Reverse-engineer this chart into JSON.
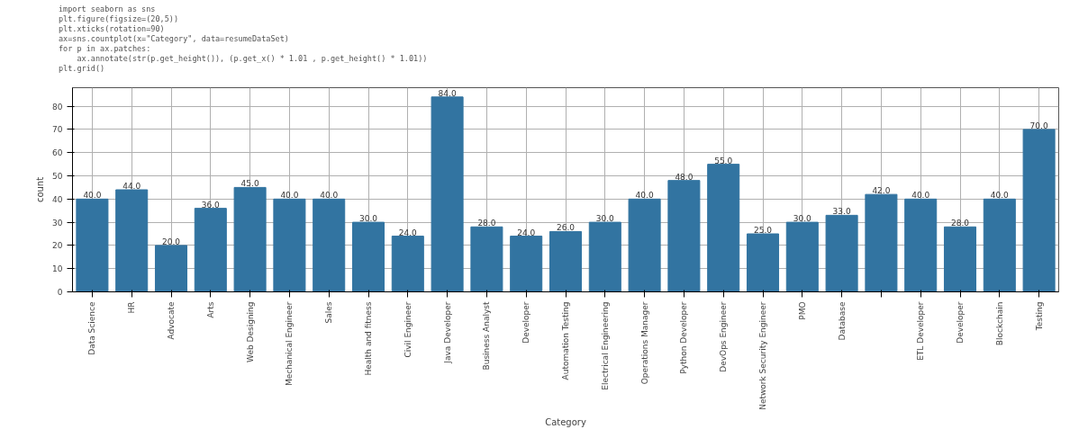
{
  "chart_data": {
    "type": "bar",
    "xlabel": "Category",
    "ylabel": "count",
    "annotations": [
      "import seaborn as sns",
      "plt.figure(figsize=(20,5))",
      "plt.xticks(rotation=90)",
      "ax=sns.countplot(x=\"Category\", data=resumeDataSet)",
      "for p in ax.patches:",
      "    ax.annotate(str(p.get_height()), (p.get_x() * 1.01 , p.get_height() * 1.01))",
      "plt.grid()"
    ],
    "categories": [
      "Data Science",
      "HR",
      "Advocate",
      "Arts",
      "Web Designing",
      "Mechanical Engineer",
      "Sales",
      "Health and fitness",
      "Civil Engineer",
      "Java Developer",
      "Business Analyst",
      "Developer",
      "Automation Testing",
      "Electrical Engineering",
      "Operations Manager",
      "Python Developer",
      "DevOps Engineer",
      "Network Security Engineer",
      "PMO",
      "Database",
      null,
      "ETL Developer",
      "Developer",
      "Blockchain",
      "Testing"
    ],
    "values": [
      40,
      44,
      20,
      36,
      45,
      40,
      40,
      30,
      24,
      84,
      28,
      24,
      26,
      30,
      40,
      48,
      55,
      25,
      30,
      33,
      42,
      40,
      28,
      40,
      70
    ],
    "value_labels": [
      "40.0",
      "44.0",
      "20.0",
      "36.0",
      "45.0",
      "40.0",
      "40.0",
      "30.0",
      "24.0",
      "84.0",
      "28.0",
      "24.0",
      "26.0",
      "30.0",
      "40.0",
      "48.0",
      "55.0",
      "25.0",
      "30.0",
      "33.0",
      "42.0",
      "40.0",
      "28.0",
      "40.0",
      "70.0"
    ],
    "color": "#3274a1",
    "ylim": [
      0,
      88
    ],
    "yticks": [
      0,
      10,
      20,
      30,
      40,
      50,
      60,
      70,
      80
    ],
    "grid": true
  }
}
